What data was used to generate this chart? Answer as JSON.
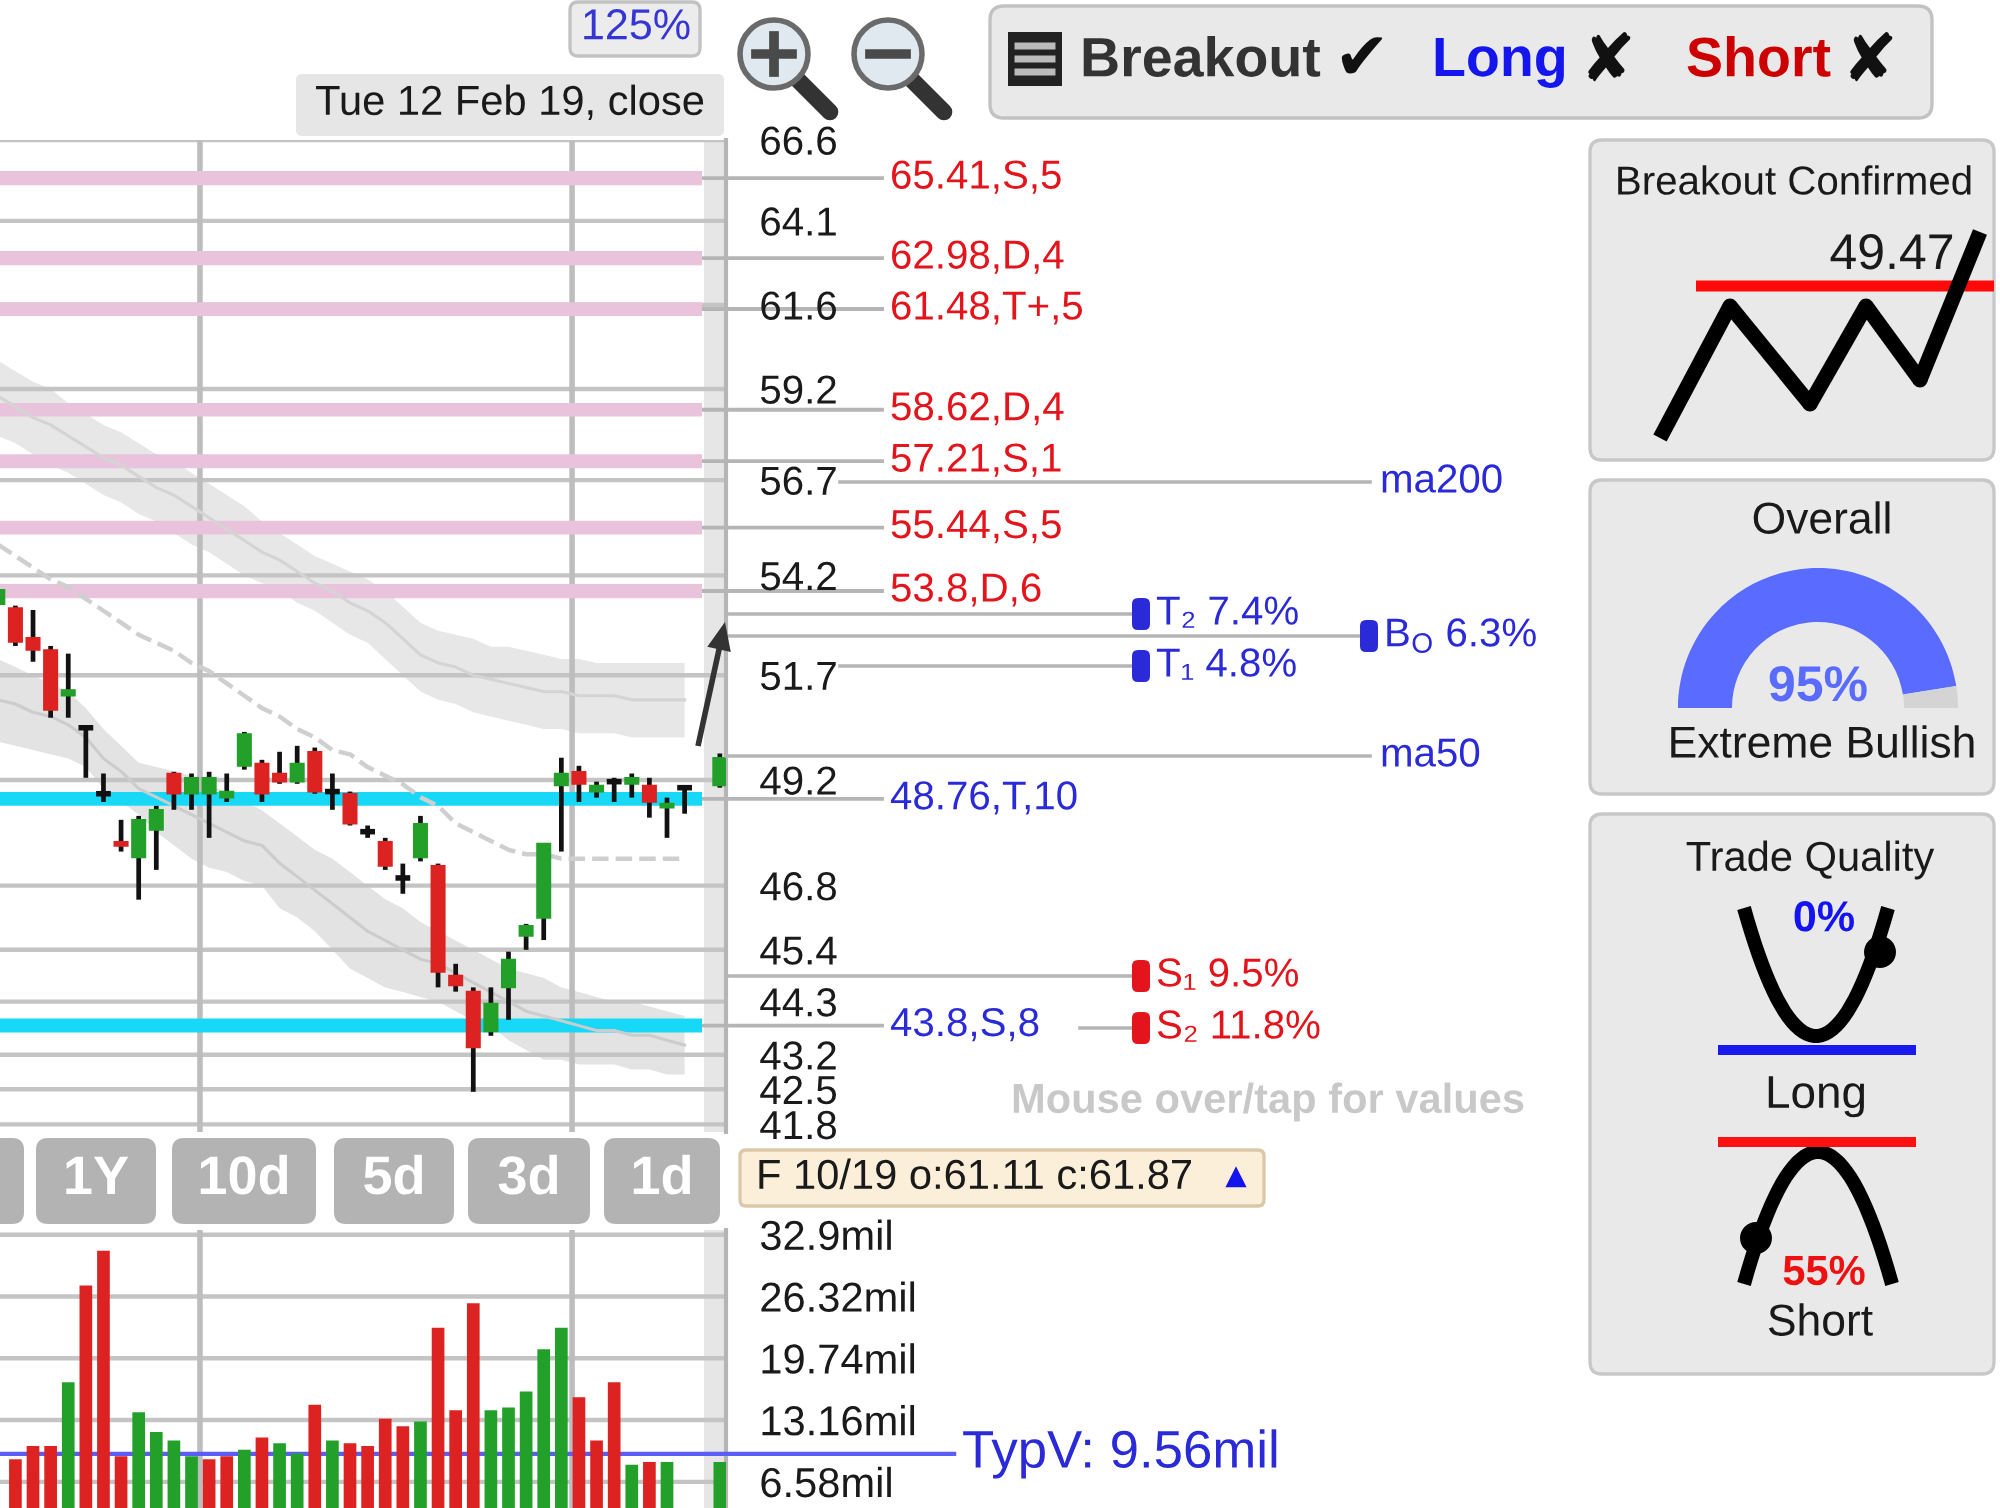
{
  "chart_data": [
    {
      "type": "other",
      "annotations": [
        "125%",
        "Tue 12 Feb 19, close",
        "Breakout",
        "✔",
        "Long",
        "✘",
        "Short",
        "✘"
      ]
    },
    {
      "type": "candlestick",
      "categories": [
        null,
        null,
        null,
        null,
        null,
        null,
        null,
        null,
        null,
        null,
        null,
        null,
        null,
        null,
        null,
        null,
        null,
        null,
        null,
        null,
        null,
        null,
        null,
        null,
        null,
        null,
        null,
        null,
        null,
        null,
        null,
        null,
        null,
        null,
        null,
        null,
        null,
        null,
        null,
        null,
        null,
        null
      ],
      "ohlc": [
        [
          53.47,
          53.83,
          53.43,
          53.83
        ],
        [
          53.37,
          53.43,
          52.42,
          52.52
        ],
        [
          52.62,
          53.32,
          52.03,
          52.32
        ],
        [
          52.32,
          52.42,
          50.67,
          50.86
        ],
        [
          51.2,
          52.23,
          50.67,
          51.34
        ],
        [
          50.43,
          50.48,
          49.25,
          50.43
        ],
        [
          48.88,
          49.35,
          48.69,
          48.88
        ],
        [
          47.78,
          48.28,
          47.56,
          47.69
        ],
        [
          47.43,
          48.37,
          46.49,
          48.28
        ],
        [
          48.05,
          48.6,
          47.15,
          48.51
        ],
        [
          49.35,
          49.39,
          48.51,
          48.88
        ],
        [
          48.88,
          49.35,
          48.51,
          49.25
        ],
        [
          48.88,
          49.39,
          47.87,
          49.25
        ],
        [
          48.79,
          49.35,
          48.69,
          48.93
        ],
        [
          49.53,
          50.33,
          49.44,
          50.28
        ],
        [
          49.58,
          49.67,
          48.69,
          48.88
        ],
        [
          49.35,
          49.86,
          49.11,
          49.16
        ],
        [
          49.16,
          50.0,
          49.11,
          49.58
        ],
        [
          49.86,
          49.96,
          48.88,
          48.93
        ],
        [
          48.93,
          49.35,
          48.51,
          48.93
        ],
        [
          48.88,
          48.93,
          48.15,
          48.19
        ],
        [
          48.01,
          48.15,
          47.87,
          48.01
        ],
        [
          47.78,
          47.87,
          47.15,
          47.24
        ],
        [
          46.97,
          47.29,
          46.62,
          46.97
        ],
        [
          47.43,
          48.37,
          47.34,
          48.19
        ],
        [
          47.24,
          47.29,
          44.6,
          44.93
        ],
        [
          44.85,
          45.1,
          44.51,
          44.64
        ],
        [
          44.51,
          44.6,
          42.45,
          43.35
        ],
        [
          43.68,
          44.6,
          43.59,
          44.26
        ],
        [
          44.6,
          45.36,
          43.92,
          45.19
        ],
        [
          45.7,
          45.96,
          45.4,
          45.92
        ],
        [
          46.09,
          47.74,
          45.61,
          47.74
        ],
        [
          49.07,
          49.72,
          47.56,
          49.35
        ],
        [
          49.39,
          49.53,
          48.69,
          49.11
        ],
        [
          48.93,
          49.16,
          48.79,
          49.07
        ],
        [
          49.16,
          49.25,
          48.69,
          49.16
        ],
        [
          49.11,
          49.35,
          48.79,
          49.25
        ],
        [
          49.07,
          49.25,
          48.33,
          48.69
        ],
        [
          48.56,
          48.79,
          47.87,
          48.65
        ],
        [
          49.02,
          49.07,
          48.42,
          49.02
        ],
        null,
        [
          49.07,
          49.82,
          49.02,
          49.72
        ]
      ],
      "colors": [
        "#22a02a",
        "#dd2222",
        "#dd2222",
        "#dd2222",
        "#22a02a",
        "#111111",
        "#111111",
        "#dd2222",
        "#22a02a",
        "#22a02a",
        "#dd2222",
        "#22a02a",
        "#22a02a",
        "#22a02a",
        "#22a02a",
        "#dd2222",
        "#dd2222",
        "#22a02a",
        "#dd2222",
        "#111111",
        "#dd2222",
        "#111111",
        "#dd2222",
        "#111111",
        "#22a02a",
        "#dd2222",
        "#dd2222",
        "#dd2222",
        "#22a02a",
        "#22a02a",
        "#22a02a",
        "#22a02a",
        "#22a02a",
        "#dd2222",
        "#22a02a",
        "#111111",
        "#22a02a",
        "#dd2222",
        "#22a02a",
        "#111111",
        null,
        "#22a02a"
      ],
      "series": [
        {
          "type": "line",
          "color": "#d4d4d4",
          "values": [
            59.0,
            58.7,
            58.4,
            58.2,
            57.9,
            57.6,
            57.3,
            57.1,
            56.8,
            56.5,
            56.3,
            56.0,
            55.7,
            55.4,
            55.1,
            54.8,
            54.6,
            54.3,
            54.0,
            53.8,
            53.5,
            53.3,
            53.0,
            52.6,
            52.2,
            52.0,
            51.9,
            51.7,
            51.6,
            51.5,
            51.4,
            51.3,
            51.3,
            51.2,
            51.2,
            51.2,
            51.1,
            51.1,
            51.1,
            51.1,
            null,
            null
          ],
          "upper": [
            60.0,
            59.7,
            59.4,
            59.2,
            58.8,
            58.5,
            58.2,
            58.0,
            57.7,
            57.4,
            57.2,
            56.9,
            56.6,
            56.3,
            56.0,
            55.6,
            55.3,
            55.0,
            54.7,
            54.5,
            54.3,
            54.1,
            53.8,
            53.4,
            53.0,
            52.8,
            52.7,
            52.6,
            52.4,
            52.4,
            52.3,
            52.2,
            52.1,
            52.1,
            52.0,
            52.0,
            52.0,
            52.0,
            52.0,
            52.0,
            null,
            null
          ],
          "lower": [
            57.9,
            57.7,
            57.4,
            57.1,
            56.9,
            56.6,
            56.3,
            56.1,
            55.8,
            55.6,
            55.3,
            55.0,
            54.8,
            54.5,
            54.2,
            54.0,
            53.8,
            53.5,
            53.3,
            53.0,
            52.7,
            52.5,
            52.1,
            51.7,
            51.3,
            51.1,
            51.0,
            50.8,
            50.7,
            50.6,
            50.5,
            50.4,
            50.4,
            50.3,
            50.3,
            50.3,
            50.2,
            50.2,
            50.2,
            50.2,
            null,
            null
          ]
        },
        {
          "type": "line",
          "color": "#cccccc",
          "values": [
            51.1,
            51.0,
            50.8,
            50.7,
            50.5,
            50.2,
            49.7,
            49.4,
            49.0,
            48.8,
            48.6,
            48.4,
            48.2,
            48.0,
            47.8,
            47.7,
            47.3,
            47.0,
            46.7,
            46.4,
            46.1,
            45.8,
            45.6,
            45.4,
            45.2,
            45.1,
            44.9,
            44.7,
            44.5,
            44.3,
            44.1,
            44.0,
            43.9,
            43.8,
            43.7,
            43.7,
            43.6,
            43.6,
            43.5,
            43.4,
            null,
            null
          ],
          "upper": [
            52.1,
            51.9,
            51.7,
            51.5,
            51.3,
            50.9,
            50.4,
            50.0,
            49.6,
            49.5,
            49.4,
            49.3,
            49.1,
            48.9,
            48.7,
            48.5,
            48.2,
            47.9,
            47.6,
            47.4,
            47.1,
            46.8,
            46.5,
            46.3,
            46.0,
            45.8,
            45.6,
            45.4,
            45.2,
            45.0,
            44.9,
            44.8,
            44.6,
            44.5,
            44.4,
            44.3,
            44.3,
            44.2,
            44.1,
            44.0,
            null,
            null
          ],
          "lower": [
            50.1,
            50.0,
            49.9,
            49.8,
            49.7,
            49.5,
            49.0,
            48.7,
            48.4,
            48.0,
            47.7,
            47.4,
            47.2,
            47.1,
            46.9,
            46.8,
            46.3,
            46.1,
            45.8,
            45.4,
            45.0,
            44.8,
            44.6,
            44.5,
            44.4,
            44.3,
            44.1,
            43.9,
            43.8,
            43.5,
            43.3,
            43.1,
            43.1,
            43.0,
            43.0,
            43.0,
            42.9,
            42.9,
            42.8,
            42.8,
            null,
            null
          ]
        },
        {
          "type": "line",
          "color": "#cfcfcf",
          "line_style": "dashed",
          "values": [
            55.0,
            54.7,
            54.4,
            54.1,
            53.9,
            53.6,
            53.3,
            53.0,
            52.7,
            52.5,
            52.3,
            52.0,
            51.8,
            51.5,
            51.2,
            50.9,
            50.7,
            50.4,
            50.2,
            49.9,
            49.8,
            49.5,
            49.3,
            49.1,
            48.8,
            48.6,
            48.2,
            48.0,
            47.8,
            47.6,
            47.5,
            47.5,
            47.4,
            47.4,
            47.4,
            47.4,
            47.4,
            47.4,
            47.4,
            47.4,
            null,
            null
          ]
        }
      ],
      "log": true,
      "ylim": [
        41.65,
        66.6
      ],
      "yticks": [
        66.6,
        64.1,
        61.6,
        59.2,
        56.7,
        54.2,
        51.7,
        49.2,
        46.8,
        45.4,
        44.3,
        43.2,
        42.5,
        41.8
      ],
      "grid": true,
      "bands": [
        {
          "axis": "y",
          "from": 65.19,
          "to": 65.63,
          "color": "#e9c3db"
        },
        {
          "axis": "y",
          "from": 62.77,
          "to": 63.19,
          "color": "#e9c3db"
        },
        {
          "axis": "y",
          "from": 61.28,
          "to": 61.68,
          "color": "#e9c3db"
        },
        {
          "axis": "y",
          "from": 58.43,
          "to": 58.81,
          "color": "#e9c3db"
        },
        {
          "axis": "y",
          "from": 57.02,
          "to": 57.4,
          "color": "#e9c3db"
        },
        {
          "axis": "y",
          "from": 55.26,
          "to": 55.62,
          "color": "#e9c3db"
        },
        {
          "axis": "y",
          "from": 53.62,
          "to": 53.98,
          "color": "#e9c3db"
        },
        {
          "axis": "y",
          "from": 48.6,
          "to": 48.92,
          "color": "#18d8f7"
        },
        {
          "axis": "y",
          "from": 43.66,
          "to": 43.95,
          "color": "#18d8f7"
        }
      ],
      "ref_lines": [
        {
          "axis": "y",
          "value": 65.41,
          "label": "65.41,S,5",
          "color": "#b5b5b5"
        },
        {
          "axis": "y",
          "value": 62.98,
          "label": "62.98,D,4",
          "color": "#b5b5b5"
        },
        {
          "axis": "y",
          "value": 61.48,
          "label": "61.48,T+,5",
          "color": "#b5b5b5"
        },
        {
          "axis": "y",
          "value": 58.62,
          "label": "58.62,D,4",
          "color": "#b5b5b5"
        },
        {
          "axis": "y",
          "value": 57.21,
          "label": "57.21,S,1",
          "color": "#b5b5b5"
        },
        {
          "axis": "y",
          "value": 55.44,
          "label": "55.44,S,5",
          "color": "#b5b5b5"
        },
        {
          "axis": "y",
          "value": 53.8,
          "label": "53.8,D,6",
          "color": "#b5b5b5"
        },
        {
          "axis": "y",
          "value": 48.76,
          "label": "48.76,T,10",
          "color": "#b5b5b5"
        },
        {
          "axis": "y",
          "value": 43.8,
          "label": "43.8,S,8",
          "color": "#b5b5b5"
        }
      ],
      "annotations": [
        "ma200",
        "T₂ 7.4%",
        "B$_{O}$ 6.3%",
        "T₁ 4.8%",
        "ma50",
        "S₁ 9.5%",
        "S₂ 11.8%",
        "Mouse over/tap for values"
      ]
    },
    {
      "type": "other",
      "title": "Breakout Confirmed",
      "annotations": [
        "49.47"
      ]
    },
    {
      "type": "donut",
      "title": "Overall",
      "categories": [
        null,
        null
      ],
      "values": [
        95,
        5
      ],
      "colors": [
        "#5a6bff",
        "#d4d4d4"
      ],
      "value_labels": [
        "95%",
        null
      ],
      "annotations": [
        "Extreme Bullish"
      ]
    },
    {
      "type": "other",
      "title": "Trade Quality",
      "annotations": [
        "0%",
        "Long",
        "55%",
        "Short"
      ]
    },
    {
      "type": "other",
      "annotations": [
        "1Y",
        "10d",
        "5d",
        "3d",
        "1d",
        "F 10/19 o:61.11 c:61.87",
        "▲"
      ]
    },
    {
      "type": "bar",
      "categories": [
        null,
        null,
        null,
        null,
        null,
        null,
        null,
        null,
        null,
        null,
        null,
        null,
        null,
        null,
        null,
        null,
        null,
        null,
        null,
        null,
        null,
        null,
        null,
        null,
        null,
        null,
        null,
        null,
        null,
        null,
        null,
        null,
        null,
        null,
        null,
        null,
        null,
        null,
        null,
        null,
        null,
        null
      ],
      "values": [
        null,
        9.0,
        10.4,
        10.4,
        17.2,
        27.5,
        31.2,
        9.3,
        14.0,
        11.9,
        11.0,
        9.3,
        9.0,
        9.3,
        10.0,
        11.3,
        10.7,
        9.6,
        14.8,
        11.0,
        10.7,
        10.4,
        13.3,
        12.5,
        13.0,
        23.0,
        14.2,
        25.6,
        14.2,
        14.5,
        16.2,
        20.7,
        23.0,
        15.6,
        11.0,
        17.2,
        8.4,
        8.7,
        8.7,
        null,
        null,
        8.7
      ],
      "colors": [
        null,
        "#dd2222",
        "#dd2222",
        "#dd2222",
        "#22a02a",
        "#dd2222",
        "#dd2222",
        "#dd2222",
        "#22a02a",
        "#22a02a",
        "#22a02a",
        "#22a02a",
        "#dd2222",
        "#dd2222",
        "#22a02a",
        "#dd2222",
        "#22a02a",
        "#22a02a",
        "#dd2222",
        "#22a02a",
        "#dd2222",
        "#dd2222",
        "#dd2222",
        "#dd2222",
        "#22a02a",
        "#dd2222",
        "#dd2222",
        "#dd2222",
        "#22a02a",
        "#22a02a",
        "#22a02a",
        "#22a02a",
        "#22a02a",
        "#dd2222",
        "#dd2222",
        "#dd2222",
        "#22a02a",
        "#dd2222",
        "#22a02a",
        null,
        null,
        "#22a02a"
      ],
      "ylim": [
        3.8,
        33.4
      ],
      "yticks": [
        {
          "value": 32.9,
          "label": "32.9mil"
        },
        {
          "value": 26.32,
          "label": "26.32mil"
        },
        {
          "value": 19.74,
          "label": "19.74mil"
        },
        {
          "value": 13.16,
          "label": "13.16mil"
        },
        {
          "value": 6.58,
          "label": "6.58mil"
        }
      ],
      "grid": true,
      "ref_lines": [
        {
          "axis": "y",
          "value": 9.56,
          "label": "TypV: 9.56mil",
          "color": "#5c5cf6"
        }
      ]
    }
  ]
}
